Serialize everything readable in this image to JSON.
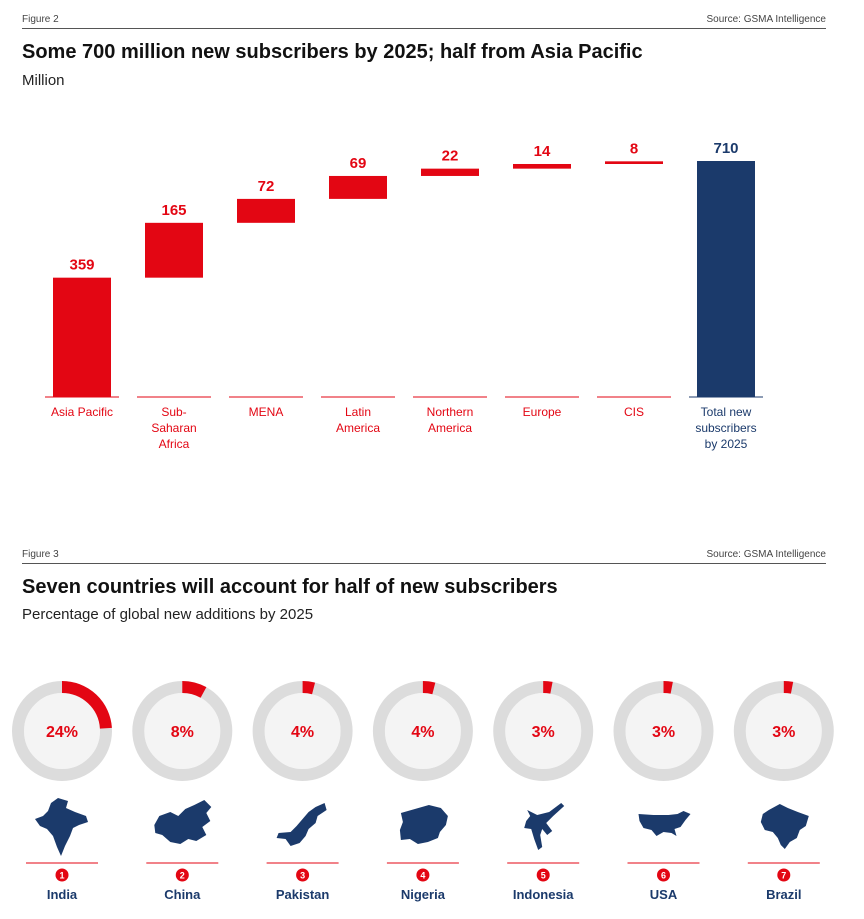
{
  "figure2": {
    "label": "Figure 2",
    "source": "Source: GSMA Intelligence",
    "title": "Some 700 million new subscribers by 2025; half from Asia Pacific",
    "subtitle": "Million"
  },
  "figure3": {
    "label": "Figure 3",
    "source": "Source: GSMA Intelligence",
    "title": "Seven countries will account for half of new subscribers",
    "subtitle": "Percentage of global new additions by 2025"
  },
  "colors": {
    "red": "#e30613",
    "navy": "#1b3a6b",
    "ring_bg": "#dcdcdc",
    "ring_inner": "#f4f4f4"
  },
  "chart_data": [
    {
      "type": "bar",
      "subtype": "waterfall",
      "title": "Some 700 million new subscribers by 2025; half from Asia Pacific",
      "ylabel": "Million",
      "categories": [
        [
          "Asia Pacific"
        ],
        [
          "Sub-",
          "Saharan",
          "Africa"
        ],
        [
          "MENA"
        ],
        [
          "Latin",
          "America"
        ],
        [
          "Northern",
          "America"
        ],
        [
          "Europe"
        ],
        [
          "CIS"
        ],
        [
          "Total new",
          "subscribers",
          "by 2025"
        ]
      ],
      "values": [
        359,
        165,
        72,
        69,
        22,
        14,
        8,
        710
      ],
      "value_labels": [
        "359",
        "165",
        "72",
        "69",
        "22",
        "14",
        "8",
        "710"
      ],
      "is_total": [
        false,
        false,
        false,
        false,
        false,
        false,
        false,
        true
      ],
      "ylim": [
        0,
        710
      ],
      "grid": false
    },
    {
      "type": "pie",
      "subtype": "donut-gauges",
      "title": "Seven countries will account for half of new subscribers",
      "unit": "%",
      "items": [
        {
          "rank": "1",
          "country": "India",
          "value": 24,
          "label": "24%",
          "icon": "india-map-icon"
        },
        {
          "rank": "2",
          "country": "China",
          "value": 8,
          "label": "8%",
          "icon": "china-map-icon"
        },
        {
          "rank": "3",
          "country": "Pakistan",
          "value": 4,
          "label": "4%",
          "icon": "pakistan-map-icon"
        },
        {
          "rank": "4",
          "country": "Nigeria",
          "value": 4,
          "label": "4%",
          "icon": "nigeria-map-icon"
        },
        {
          "rank": "5",
          "country": "Indonesia",
          "value": 3,
          "label": "3%",
          "icon": "indonesia-map-icon"
        },
        {
          "rank": "6",
          "country": "USA",
          "value": 3,
          "label": "3%",
          "icon": "usa-map-icon"
        },
        {
          "rank": "7",
          "country": "Brazil",
          "value": 3,
          "label": "3%",
          "icon": "brazil-map-icon"
        }
      ]
    }
  ]
}
